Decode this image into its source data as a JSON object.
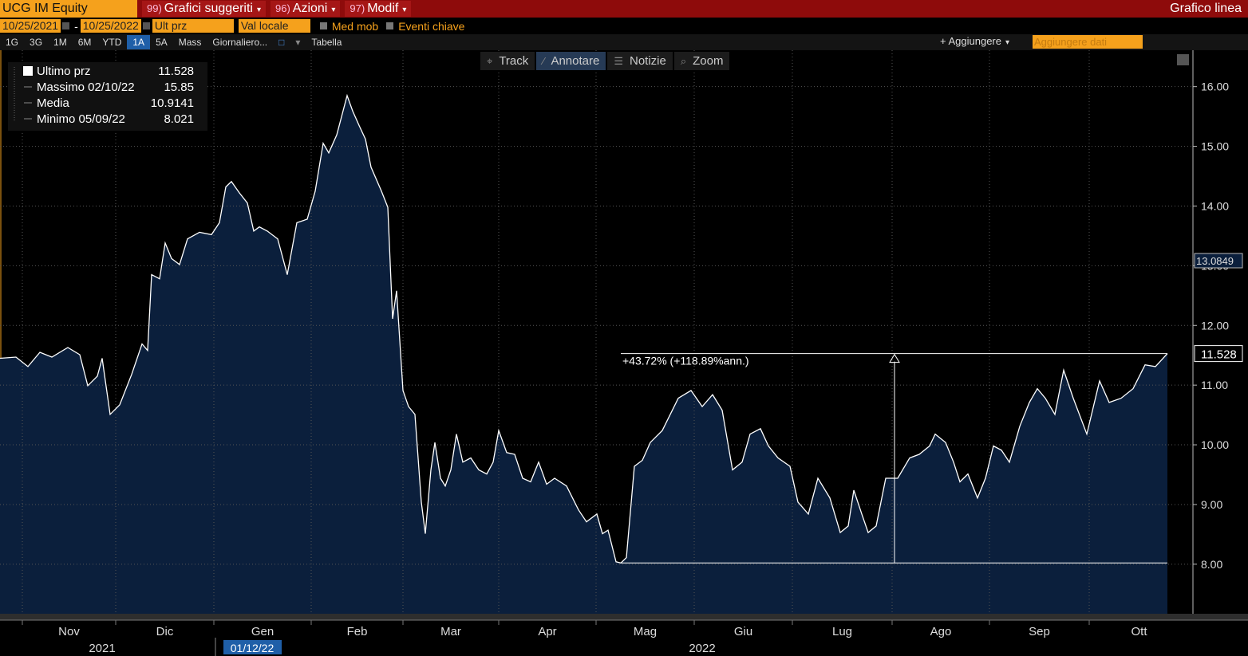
{
  "header": {
    "ticker": "UCG IM Equity",
    "menus": [
      {
        "num": "99)",
        "label": "Grafici suggeriti"
      },
      {
        "num": "96)",
        "label": "Azioni"
      },
      {
        "num": "97)",
        "label": "Modif"
      }
    ],
    "chart_kind": "Grafico linea"
  },
  "settings": {
    "start": "10/25/2021",
    "dash": "-",
    "end": "10/25/2022",
    "field": "Ult prz",
    "currency": "Val locale",
    "moving_avg": "Med mob",
    "events": "Eventi chiave"
  },
  "ranges": [
    "1G",
    "3G",
    "1M",
    "6M",
    "YTD",
    "1A",
    "5A",
    "Mass"
  ],
  "active_range": "1A",
  "period": "Giornaliero...",
  "table": "Tabella",
  "add": "+ Aggiungere",
  "add_data": "Aggiungere dati",
  "tools": [
    "Track",
    "Annotare",
    "Notizie",
    "Zoom"
  ],
  "active_tool": "Annotare",
  "chart_data": {
    "type": "area",
    "legend_stats": [
      {
        "label": "Ultimo prz",
        "value": 11.528
      },
      {
        "label": "Massimo 02/10/22",
        "value": 15.85
      },
      {
        "label": "Media",
        "value": 10.9141
      },
      {
        "label": "Minimo 05/09/22",
        "value": 8.021
      }
    ],
    "x": [
      0,
      5,
      8.75,
      12.5,
      16.25,
      21.25,
      25,
      27.5,
      30.5,
      32,
      34.5,
      37.5,
      41.25,
      44.5,
      46.25,
      47.5,
      50,
      51.75,
      53.75,
      56.25,
      58.75,
      62.5,
      66.25,
      68.75,
      70.75,
      72.5,
      75,
      77.5,
      79.5,
      81.25,
      83.75,
      87,
      90,
      93,
      96.25,
      98.75,
      101.25,
      103,
      105.5,
      108.75,
      110.5,
      112.5,
      114.5,
      116.25,
      119.5,
      121.5,
      123,
      124.25,
      126.25,
      128,
      130,
      132,
      133.25,
      135,
      136.25,
      138,
      139.5,
      141.25,
      143,
      145,
      147.5,
      150,
      152.5,
      154.5,
      156.25,
      158.75,
      161.25,
      163.75,
      166.25,
      168.75,
      171.25,
      173.75,
      177.5,
      181.25,
      183.75,
      187,
      188.75,
      190.5,
      193,
      194.5,
      196.25,
      198.75,
      201.25,
      203.75,
      207.5,
      212.5,
      216.5,
      220,
      223.25,
      226.25,
      229.5,
      232.5,
      235,
      238.25,
      240.75,
      243.75,
      247.5,
      250,
      253.25,
      256.25,
      260,
      263.25,
      265.75,
      267.5,
      270,
      272,
      274.5,
      277.5,
      281.25,
      285,
      288,
      291.25,
      293,
      296.25,
      298.75,
      300.75,
      303.25,
      306.25,
      308.75,
      311.25,
      313.75,
      316.25,
      319.5,
      322.5,
      325,
      327.5,
      330.5,
      333.25,
      336.25,
      340.5,
      344.5,
      347.5,
      351.25,
      355,
      358.75,
      362,
      365.75
    ],
    "series": [
      {
        "color": "#ffffff",
        "fill": "#0b1f3c",
        "values": [
          11.45,
          11.47,
          11.31,
          11.55,
          11.47,
          11.63,
          11.51,
          10.99,
          11.15,
          11.45,
          10.51,
          10.67,
          11.18,
          11.69,
          11.58,
          12.85,
          12.78,
          13.38,
          13.12,
          13.02,
          13.45,
          13.56,
          13.52,
          13.72,
          14.32,
          14.41,
          14.22,
          14.05,
          13.58,
          13.65,
          13.58,
          13.45,
          12.85,
          13.72,
          13.78,
          14.25,
          15.05,
          14.89,
          15.19,
          15.85,
          15.59,
          15.35,
          15.12,
          14.65,
          14.25,
          13.98,
          12.11,
          12.58,
          10.91,
          10.64,
          10.51,
          9.04,
          8.51,
          9.58,
          10.04,
          9.44,
          9.31,
          9.58,
          10.18,
          9.71,
          9.78,
          9.58,
          9.51,
          9.71,
          10.24,
          9.87,
          9.84,
          9.44,
          9.38,
          9.71,
          9.34,
          9.44,
          9.31,
          8.91,
          8.71,
          8.84,
          8.51,
          8.57,
          8.04,
          8.02,
          8.11,
          9.64,
          9.74,
          10.04,
          10.24,
          10.78,
          10.91,
          10.64,
          10.84,
          10.58,
          9.58,
          9.71,
          10.18,
          10.27,
          9.98,
          9.78,
          9.64,
          9.04,
          8.84,
          9.44,
          9.11,
          8.53,
          8.64,
          9.24,
          8.84,
          8.53,
          8.64,
          9.44,
          9.44,
          9.78,
          9.84,
          9.98,
          10.18,
          10.04,
          9.71,
          9.38,
          9.51,
          9.11,
          9.44,
          9.98,
          9.91,
          9.71,
          10.31,
          10.71,
          10.94,
          10.78,
          10.51,
          11.25,
          10.78,
          10.18,
          11.07,
          10.71,
          10.78,
          10.94,
          11.34,
          11.31,
          11.528
        ]
      }
    ],
    "xlim": [
      0,
      365.75
    ],
    "xticks": [
      {
        "value": 7,
        "label": "Nov"
      },
      {
        "value": 36.25,
        "label": "Dic"
      },
      {
        "value": 67,
        "label": "Gen"
      },
      {
        "value": 97.5,
        "label": "Feb"
      },
      {
        "value": 126.25,
        "label": "Mar"
      },
      {
        "value": 156.25,
        "label": "Apr"
      },
      {
        "value": 186.75,
        "label": "Mag"
      },
      {
        "value": 217.5,
        "label": "Giu"
      },
      {
        "value": 248.25,
        "label": "Lug"
      },
      {
        "value": 279.5,
        "label": "Ago"
      },
      {
        "value": 310,
        "label": "Sep"
      },
      {
        "value": 341.25,
        "label": "Ott"
      }
    ],
    "years": [
      {
        "value": 32,
        "label": "2021"
      },
      {
        "value": 220,
        "label": "2022"
      }
    ],
    "cursor_date": "01/12/22",
    "ylim": [
      7.17,
      16.61
    ],
    "yticks": [
      {
        "value": 8,
        "label": "8.00"
      },
      {
        "value": 9,
        "label": "9.00"
      },
      {
        "value": 10,
        "label": "10.00"
      },
      {
        "value": 11,
        "label": "11.00"
      },
      {
        "value": 12,
        "label": "12.00"
      },
      {
        "value": 13,
        "label": "13.00"
      },
      {
        "value": 14,
        "label": "14.00"
      },
      {
        "value": 15,
        "label": "15.00"
      },
      {
        "value": 16,
        "label": "16.00"
      }
    ],
    "axis_marker": 13.0849,
    "annotation": {
      "label": "+43.72% (+118.89%ann.)",
      "low": 8.021,
      "high": 11.528,
      "x0": 194.5,
      "x1": 365.75,
      "arrow_x": 280.25
    },
    "grid": true
  }
}
